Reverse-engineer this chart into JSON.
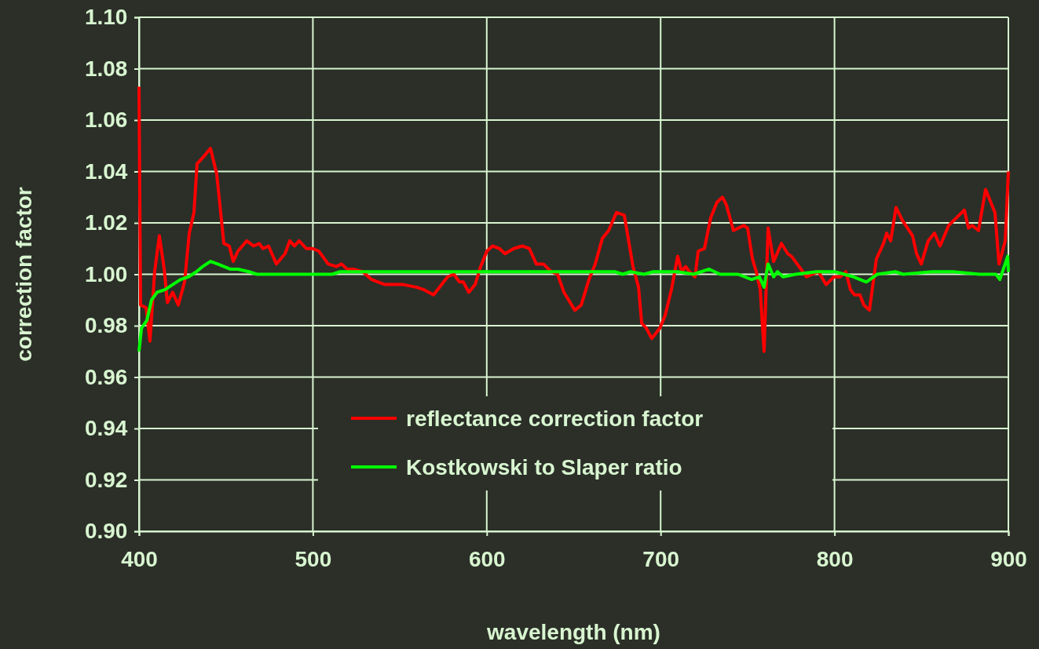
{
  "chart_data": {
    "type": "line",
    "xlabel": "wavelength (nm)",
    "ylabel": "correction factor",
    "xlim": [
      400,
      900
    ],
    "xticks": [
      400,
      500,
      600,
      700,
      800,
      900
    ],
    "ylim": [
      0.9,
      1.1
    ],
    "yticks": [
      {
        "value": 0.9,
        "label": "0.90"
      },
      {
        "value": 0.92,
        "label": "0.92"
      },
      {
        "value": 0.94,
        "label": "0.94"
      },
      {
        "value": 0.96,
        "label": "0.96"
      },
      {
        "value": 0.98,
        "label": "0.98"
      },
      {
        "value": 1.0,
        "label": "1.00"
      },
      {
        "value": 1.02,
        "label": "1.02"
      },
      {
        "value": 1.04,
        "label": "1.04"
      },
      {
        "value": 1.06,
        "label": "1.06"
      },
      {
        "value": 1.08,
        "label": "1.08"
      },
      {
        "value": 1.1,
        "label": "1.10"
      }
    ],
    "grid": true,
    "legend": "bottom",
    "marker": "none",
    "line_style": "solid",
    "series": [
      {
        "name": "reflectance correction factor",
        "color": "#ff0000",
        "x": [
          400,
          400.9,
          404.1,
          406.3,
          409,
          411.7,
          414.5,
          416.3,
          419.4,
          422.6,
          426.2,
          428.9,
          431.6,
          433.4,
          437.5,
          441.1,
          444.7,
          448.8,
          451.9,
          454.2,
          456.9,
          461.9,
          465.9,
          469.1,
          471.3,
          474.5,
          479,
          484,
          486.7,
          489.4,
          492.1,
          496.2,
          499.8,
          503.4,
          508.8,
          513.4,
          516.5,
          519.7,
          523.3,
          528.7,
          533.7,
          541.4,
          545.9,
          551.8,
          559.4,
          563.9,
          569.4,
          577.5,
          581.1,
          584.3,
          586.5,
          589.7,
          593.3,
          596.5,
          600.1,
          603.3,
          607.3,
          610.5,
          615.5,
          620.4,
          624.5,
          628.5,
          632.6,
          637.1,
          640.7,
          644.4,
          650.7,
          654.3,
          658.8,
          662.4,
          666.5,
          670.1,
          674.6,
          679.1,
          684.1,
          687.3,
          689.1,
          691.8,
          694.9,
          699.5,
          702.6,
          706.2,
          709.8,
          712.1,
          714.4,
          716.6,
          719.8,
          721.6,
          725.2,
          728.8,
          732.4,
          735.6,
          737.8,
          741.9,
          747.8,
          750,
          752.8,
          755,
          757.3,
          759.5,
          761.8,
          765,
          769.5,
          773.1,
          775.3,
          783.9,
          790.7,
          795.2,
          799.7,
          803.3,
          806.5,
          809.2,
          811.5,
          814.6,
          816.9,
          820.1,
          824.1,
          828.2,
          830,
          832.3,
          835.4,
          839,
          844.9,
          847.2,
          849.9,
          853.9,
          857.5,
          860.7,
          865.7,
          870.2,
          874.7,
          877,
          879.2,
          882.8,
          886.9,
          892.3,
          894.6,
          898.2,
          900
        ],
        "values": [
          1.073,
          0.988,
          0.987,
          0.974,
          1.001,
          1.015,
          1.002,
          0.989,
          0.993,
          0.988,
          0.997,
          1.016,
          1.024,
          1.043,
          1.046,
          1.049,
          1.039,
          1.012,
          1.011,
          1.005,
          1.009,
          1.013,
          1.011,
          1.012,
          1.01,
          1.011,
          1.004,
          1.008,
          1.013,
          1.011,
          1.013,
          1.01,
          1.01,
          1.009,
          1.004,
          1.003,
          1.004,
          1.002,
          1.002,
          1.001,
          0.998,
          0.996,
          0.996,
          0.996,
          0.995,
          0.994,
          0.992,
          0.999,
          1.0,
          0.997,
          0.997,
          0.993,
          0.996,
          1.003,
          1.009,
          1.011,
          1.01,
          1.008,
          1.01,
          1.011,
          1.01,
          1.004,
          1.004,
          1.001,
          1.0,
          0.993,
          0.986,
          0.988,
          0.998,
          1.004,
          1.014,
          1.017,
          1.024,
          1.023,
          1.003,
          0.995,
          0.981,
          0.979,
          0.975,
          0.979,
          0.984,
          0.994,
          1.007,
          1.001,
          1.003,
          1.001,
          0.999,
          1.009,
          1.01,
          1.022,
          1.028,
          1.03,
          1.027,
          1.017,
          1.019,
          1.018,
          1.006,
          1.001,
          0.994,
          0.97,
          1.018,
          1.005,
          1.012,
          1.008,
          1.007,
          0.999,
          1.001,
          0.996,
          0.999,
          0.999,
          1.001,
          0.994,
          0.992,
          0.992,
          0.988,
          0.986,
          1.006,
          1.012,
          1.016,
          1.013,
          1.026,
          1.021,
          1.015,
          1.008,
          1.004,
          1.013,
          1.016,
          1.011,
          1.019,
          1.022,
          1.025,
          1.018,
          1.019,
          1.017,
          1.033,
          1.024,
          1.004,
          1.013,
          1.04
        ]
      },
      {
        "name": "Kostkowski to Slaper ratio",
        "color": "#00ff00",
        "x": [
          400,
          401.4,
          404.5,
          407.2,
          410.4,
          414.9,
          419.4,
          423.9,
          428.5,
          433,
          436.6,
          441.1,
          445.2,
          452.4,
          456.9,
          463.2,
          467.8,
          511.1,
          515.6,
          568.5,
          574.3,
          577.1,
          580.7,
          594.2,
          615,
          618.2,
          673.7,
          678.2,
          682.7,
          690.4,
          695.8,
          709.8,
          718.9,
          723.4,
          727.9,
          734.2,
          744.6,
          752.3,
          756.8,
          759.5,
          761.8,
          765,
          767.2,
          770.4,
          777.6,
          789.8,
          800.2,
          811,
          818.3,
          824.6,
          835,
          839.5,
          856.2,
          868,
          883.4,
          892.8,
          895.1,
          899.6,
          900
        ],
        "values": [
          0.97,
          0.979,
          0.982,
          0.99,
          0.993,
          0.994,
          0.996,
          0.998,
          0.999,
          1.001,
          1.003,
          1.005,
          1.004,
          1.002,
          1.002,
          1.001,
          1.0,
          1.0,
          1.001,
          1.001,
          1.001,
          1.001,
          1.001,
          1.001,
          1.001,
          1.001,
          1.001,
          1.0,
          1.001,
          1.0,
          1.001,
          1.001,
          1.0,
          1.001,
          1.002,
          1.0,
          1.0,
          0.998,
          0.999,
          0.995,
          1.004,
          0.999,
          1.001,
          0.999,
          1.0,
          1.001,
          1.001,
          0.999,
          0.997,
          1.0,
          1.001,
          1.0,
          1.001,
          1.001,
          1.0,
          1.0,
          0.998,
          1.007,
          1.001
        ]
      }
    ]
  }
}
